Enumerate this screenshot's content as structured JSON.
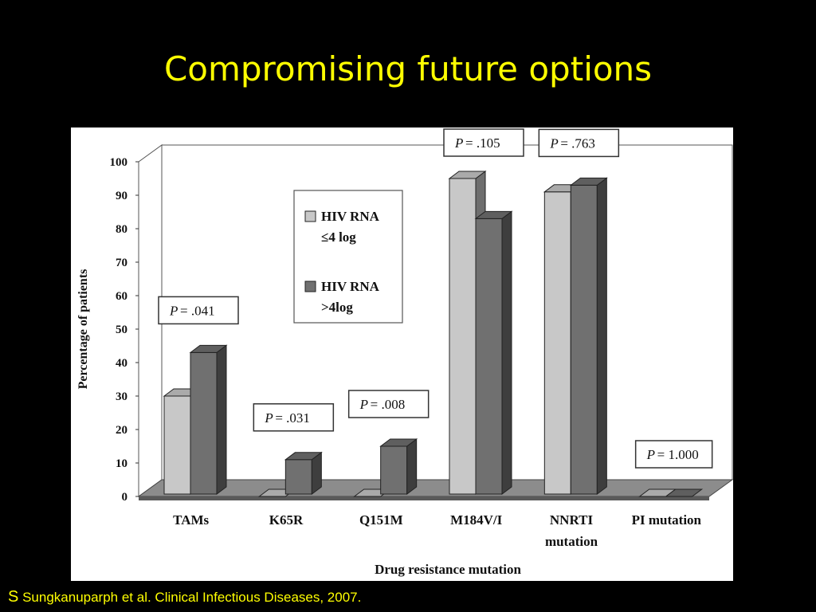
{
  "slide": {
    "title": "Compromising future options",
    "citation_marker": "S",
    "citation": "Sungkanuparph et al. Clinical Infectious Diseases, 2007."
  },
  "chart_data": {
    "type": "bar",
    "xlabel": "Drug resistance mutation",
    "ylabel": "Percentage of patients",
    "ylim": [
      0,
      100
    ],
    "yticks": [
      0,
      10,
      20,
      30,
      40,
      50,
      60,
      70,
      80,
      90,
      100
    ],
    "categories": [
      {
        "line1": "TAMs",
        "line2": ""
      },
      {
        "line1": "K65R",
        "line2": ""
      },
      {
        "line1": "Q151M",
        "line2": ""
      },
      {
        "line1": "M184V/I",
        "line2": ""
      },
      {
        "line1": "NNRTI",
        "line2": "mutation"
      },
      {
        "line1": "PI  mutation",
        "line2": ""
      }
    ],
    "series": [
      {
        "name": "HIV RNA ≤4 log",
        "legend_line1": "HIV RNA",
        "legend_line2": "≤4 log",
        "color": "#c8c8c8",
        "values": [
          30,
          0,
          0,
          95,
          91,
          0
        ]
      },
      {
        "name": "HIV RNA >4log",
        "legend_line1": "HIV RNA",
        "legend_line2": ">4log",
        "color": "#707070",
        "values": [
          43,
          11,
          15,
          83,
          93,
          0
        ]
      }
    ],
    "annotations": [
      {
        "category": "TAMs",
        "p_label": "P",
        "p_value": " = .041"
      },
      {
        "category": "K65R",
        "p_label": "P",
        "p_value": " = .031"
      },
      {
        "category": "Q151M",
        "p_label": "P",
        "p_value": " = .008"
      },
      {
        "category": "M184V/I",
        "p_label": "P",
        "p_value": " = .105"
      },
      {
        "category": "NNRTI mutation",
        "p_label": "P",
        "p_value": " = .763"
      },
      {
        "category": "PI mutation",
        "p_label": "P",
        "p_value": " = 1.000"
      }
    ],
    "legend_position": "top-center",
    "grid": false
  }
}
